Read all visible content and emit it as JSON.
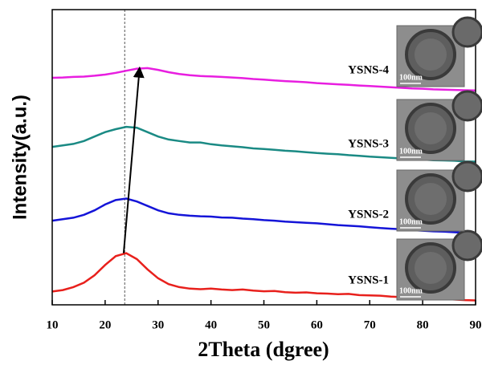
{
  "chart_data": {
    "type": "line",
    "xlabel": "2Theta (dgree)",
    "ylabel": "Intensity(a.u.)",
    "x": [
      10,
      12,
      14,
      16,
      18,
      20,
      22,
      24,
      26,
      28,
      30,
      32,
      34,
      36,
      38,
      40,
      42,
      44,
      46,
      48,
      50,
      52,
      54,
      56,
      58,
      60,
      62,
      64,
      66,
      68,
      70,
      72,
      74,
      76,
      78,
      80,
      82,
      84,
      86,
      88,
      90
    ],
    "series": [
      {
        "name": "YSNS-1",
        "color": "#e8201c",
        "values": [
          4.5,
          5,
          6,
          7.5,
          10,
          13.5,
          16.5,
          17.5,
          15.5,
          12,
          9,
          7,
          6,
          5.5,
          5.3,
          5.5,
          5.2,
          5,
          5.2,
          4.8,
          4.6,
          4.7,
          4.3,
          4.1,
          4.2,
          3.9,
          3.8,
          3.6,
          3.7,
          3.3,
          3.2,
          3.1,
          2.8,
          2.6,
          2.5,
          2.3,
          2.2,
          2,
          1.8,
          1.6,
          1.5
        ]
      },
      {
        "name": "YSNS-2",
        "color": "#1414d8",
        "values": [
          28.5,
          29,
          29.5,
          30.5,
          32,
          34,
          35.5,
          36,
          35,
          33.5,
          32,
          31,
          30.5,
          30.2,
          30,
          29.9,
          29.6,
          29.5,
          29.2,
          29,
          28.7,
          28.5,
          28.2,
          28,
          27.8,
          27.6,
          27.3,
          27,
          26.8,
          26.6,
          26.3,
          26,
          25.8,
          25.6,
          25.3,
          25.1,
          24.9,
          24.8,
          24.6,
          24.4,
          24.3
        ]
      },
      {
        "name": "YSNS-3",
        "color": "#1a8a84",
        "values": [
          53.5,
          54,
          54.5,
          55.5,
          57,
          58.5,
          59.5,
          60.3,
          60,
          58.5,
          57,
          56,
          55.5,
          55,
          55,
          54.4,
          54,
          53.7,
          53.4,
          53,
          52.8,
          52.5,
          52.2,
          52,
          51.7,
          51.4,
          51.2,
          51,
          50.7,
          50.5,
          50.2,
          50,
          49.8,
          49.6,
          49.4,
          49.2,
          49,
          48.9,
          48.8,
          48.6,
          48.5
        ]
      },
      {
        "name": "YSNS-4",
        "color": "#e81ee0",
        "values": [
          76.9,
          77,
          77.2,
          77.3,
          77.6,
          78,
          78.6,
          79.3,
          80,
          80.2,
          79.6,
          78.8,
          78.2,
          77.8,
          77.5,
          77.4,
          77.2,
          77,
          76.8,
          76.5,
          76.3,
          76,
          75.8,
          75.6,
          75.4,
          75.1,
          74.9,
          74.7,
          74.5,
          74.3,
          74.1,
          73.9,
          73.7,
          73.5,
          73.3,
          73.2,
          73,
          72.9,
          72.8,
          72.7,
          72.6
        ]
      }
    ],
    "insets": [
      {
        "scale_bar": "100nm"
      },
      {
        "scale_bar": "100nm"
      },
      {
        "scale_bar": "100nm"
      },
      {
        "scale_bar": "100nm"
      }
    ],
    "reference_line_x": 23.7,
    "arrow": {
      "from": [
        23.5,
        17.5
      ],
      "to": [
        26.5,
        80
      ]
    },
    "xlim": [
      10,
      90
    ],
    "xticks": [
      10,
      20,
      30,
      40,
      50,
      60,
      70,
      80,
      90
    ],
    "ylim": [
      0,
      100
    ]
  }
}
